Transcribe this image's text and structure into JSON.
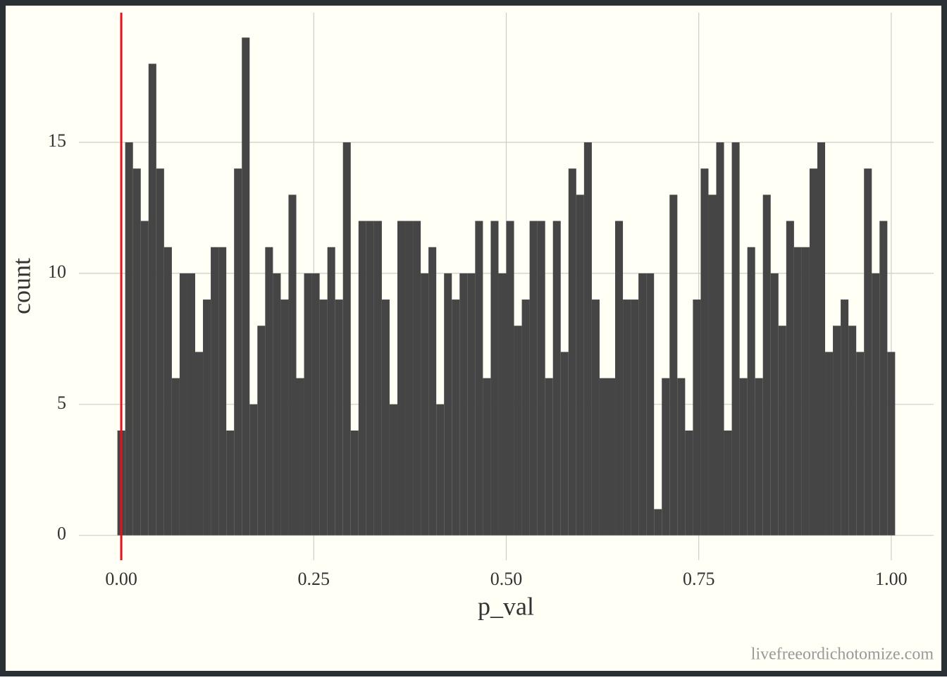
{
  "chart_data": {
    "type": "histogram",
    "x_label": "p_val",
    "y_label": "count",
    "caption": "livefreeordichotomize.com",
    "bins": [
      -0.005,
      0.0051,
      0.0152,
      0.0253,
      0.0354,
      0.0455,
      0.0556,
      0.0657,
      0.0758,
      0.0859,
      0.096,
      0.1061,
      0.1162,
      0.1263,
      0.1364,
      0.1465,
      0.1566,
      0.1667,
      0.1768,
      0.1869,
      0.197,
      0.2071,
      0.2172,
      0.2273,
      0.2374,
      0.2475,
      0.2576,
      0.2677,
      0.2778,
      0.2879,
      0.298,
      0.3081,
      0.3182,
      0.3283,
      0.3384,
      0.3485,
      0.3586,
      0.3687,
      0.3788,
      0.3889,
      0.399,
      0.4091,
      0.4192,
      0.4293,
      0.4394,
      0.4495,
      0.4596,
      0.4697,
      0.4798,
      0.4899,
      0.5,
      0.5101,
      0.5202,
      0.5303,
      0.5404,
      0.5505,
      0.5606,
      0.5707,
      0.5808,
      0.5909,
      0.601,
      0.6111,
      0.6212,
      0.6313,
      0.6414,
      0.6515,
      0.6616,
      0.6717,
      0.6818,
      0.6919,
      0.702,
      0.7121,
      0.7222,
      0.7323,
      0.7424,
      0.7525,
      0.7626,
      0.7727,
      0.7828,
      0.7929,
      0.803,
      0.8131,
      0.8232,
      0.8333,
      0.8434,
      0.8535,
      0.8636,
      0.8737,
      0.8838,
      0.8939,
      0.904,
      0.9141,
      0.9242,
      0.9343,
      0.9444,
      0.9545,
      0.9646,
      0.9747,
      0.9848,
      0.9949,
      1.005
    ],
    "counts": [
      4,
      15,
      14,
      12,
      18,
      14,
      11,
      6,
      10,
      10,
      7,
      9,
      11,
      11,
      4,
      14,
      19,
      5,
      8,
      11,
      10,
      9,
      13,
      6,
      10,
      10,
      9,
      11,
      9,
      15,
      4,
      12,
      12,
      12,
      9,
      5,
      12,
      12,
      12,
      10,
      11,
      5,
      10,
      9,
      10,
      10,
      12,
      6,
      12,
      10,
      12,
      8,
      9,
      12,
      12,
      6,
      12,
      7,
      14,
      13,
      15,
      9,
      6,
      6,
      12,
      9,
      9,
      10,
      10,
      1,
      6,
      13,
      6,
      4,
      9,
      14,
      13,
      15,
      4,
      15,
      6,
      11,
      6,
      13,
      10,
      8,
      12,
      11,
      11,
      14,
      15,
      7,
      8,
      9,
      8,
      7,
      14,
      10,
      12,
      7
    ],
    "color": "#454545",
    "vline": 0,
    "vline_color": "#e3121b",
    "xlim": [
      -0.055,
      1.055
    ],
    "ylim": [
      -0.95,
      19.95
    ],
    "xticks": [
      {
        "value": 0,
        "label": "0.00"
      },
      {
        "value": 0.25,
        "label": "0.25"
      },
      {
        "value": 0.5,
        "label": "0.50"
      },
      {
        "value": 0.75,
        "label": "0.75"
      },
      {
        "value": 1,
        "label": "1.00"
      }
    ],
    "yticks": [
      0,
      5,
      10,
      15
    ],
    "grid": true
  }
}
